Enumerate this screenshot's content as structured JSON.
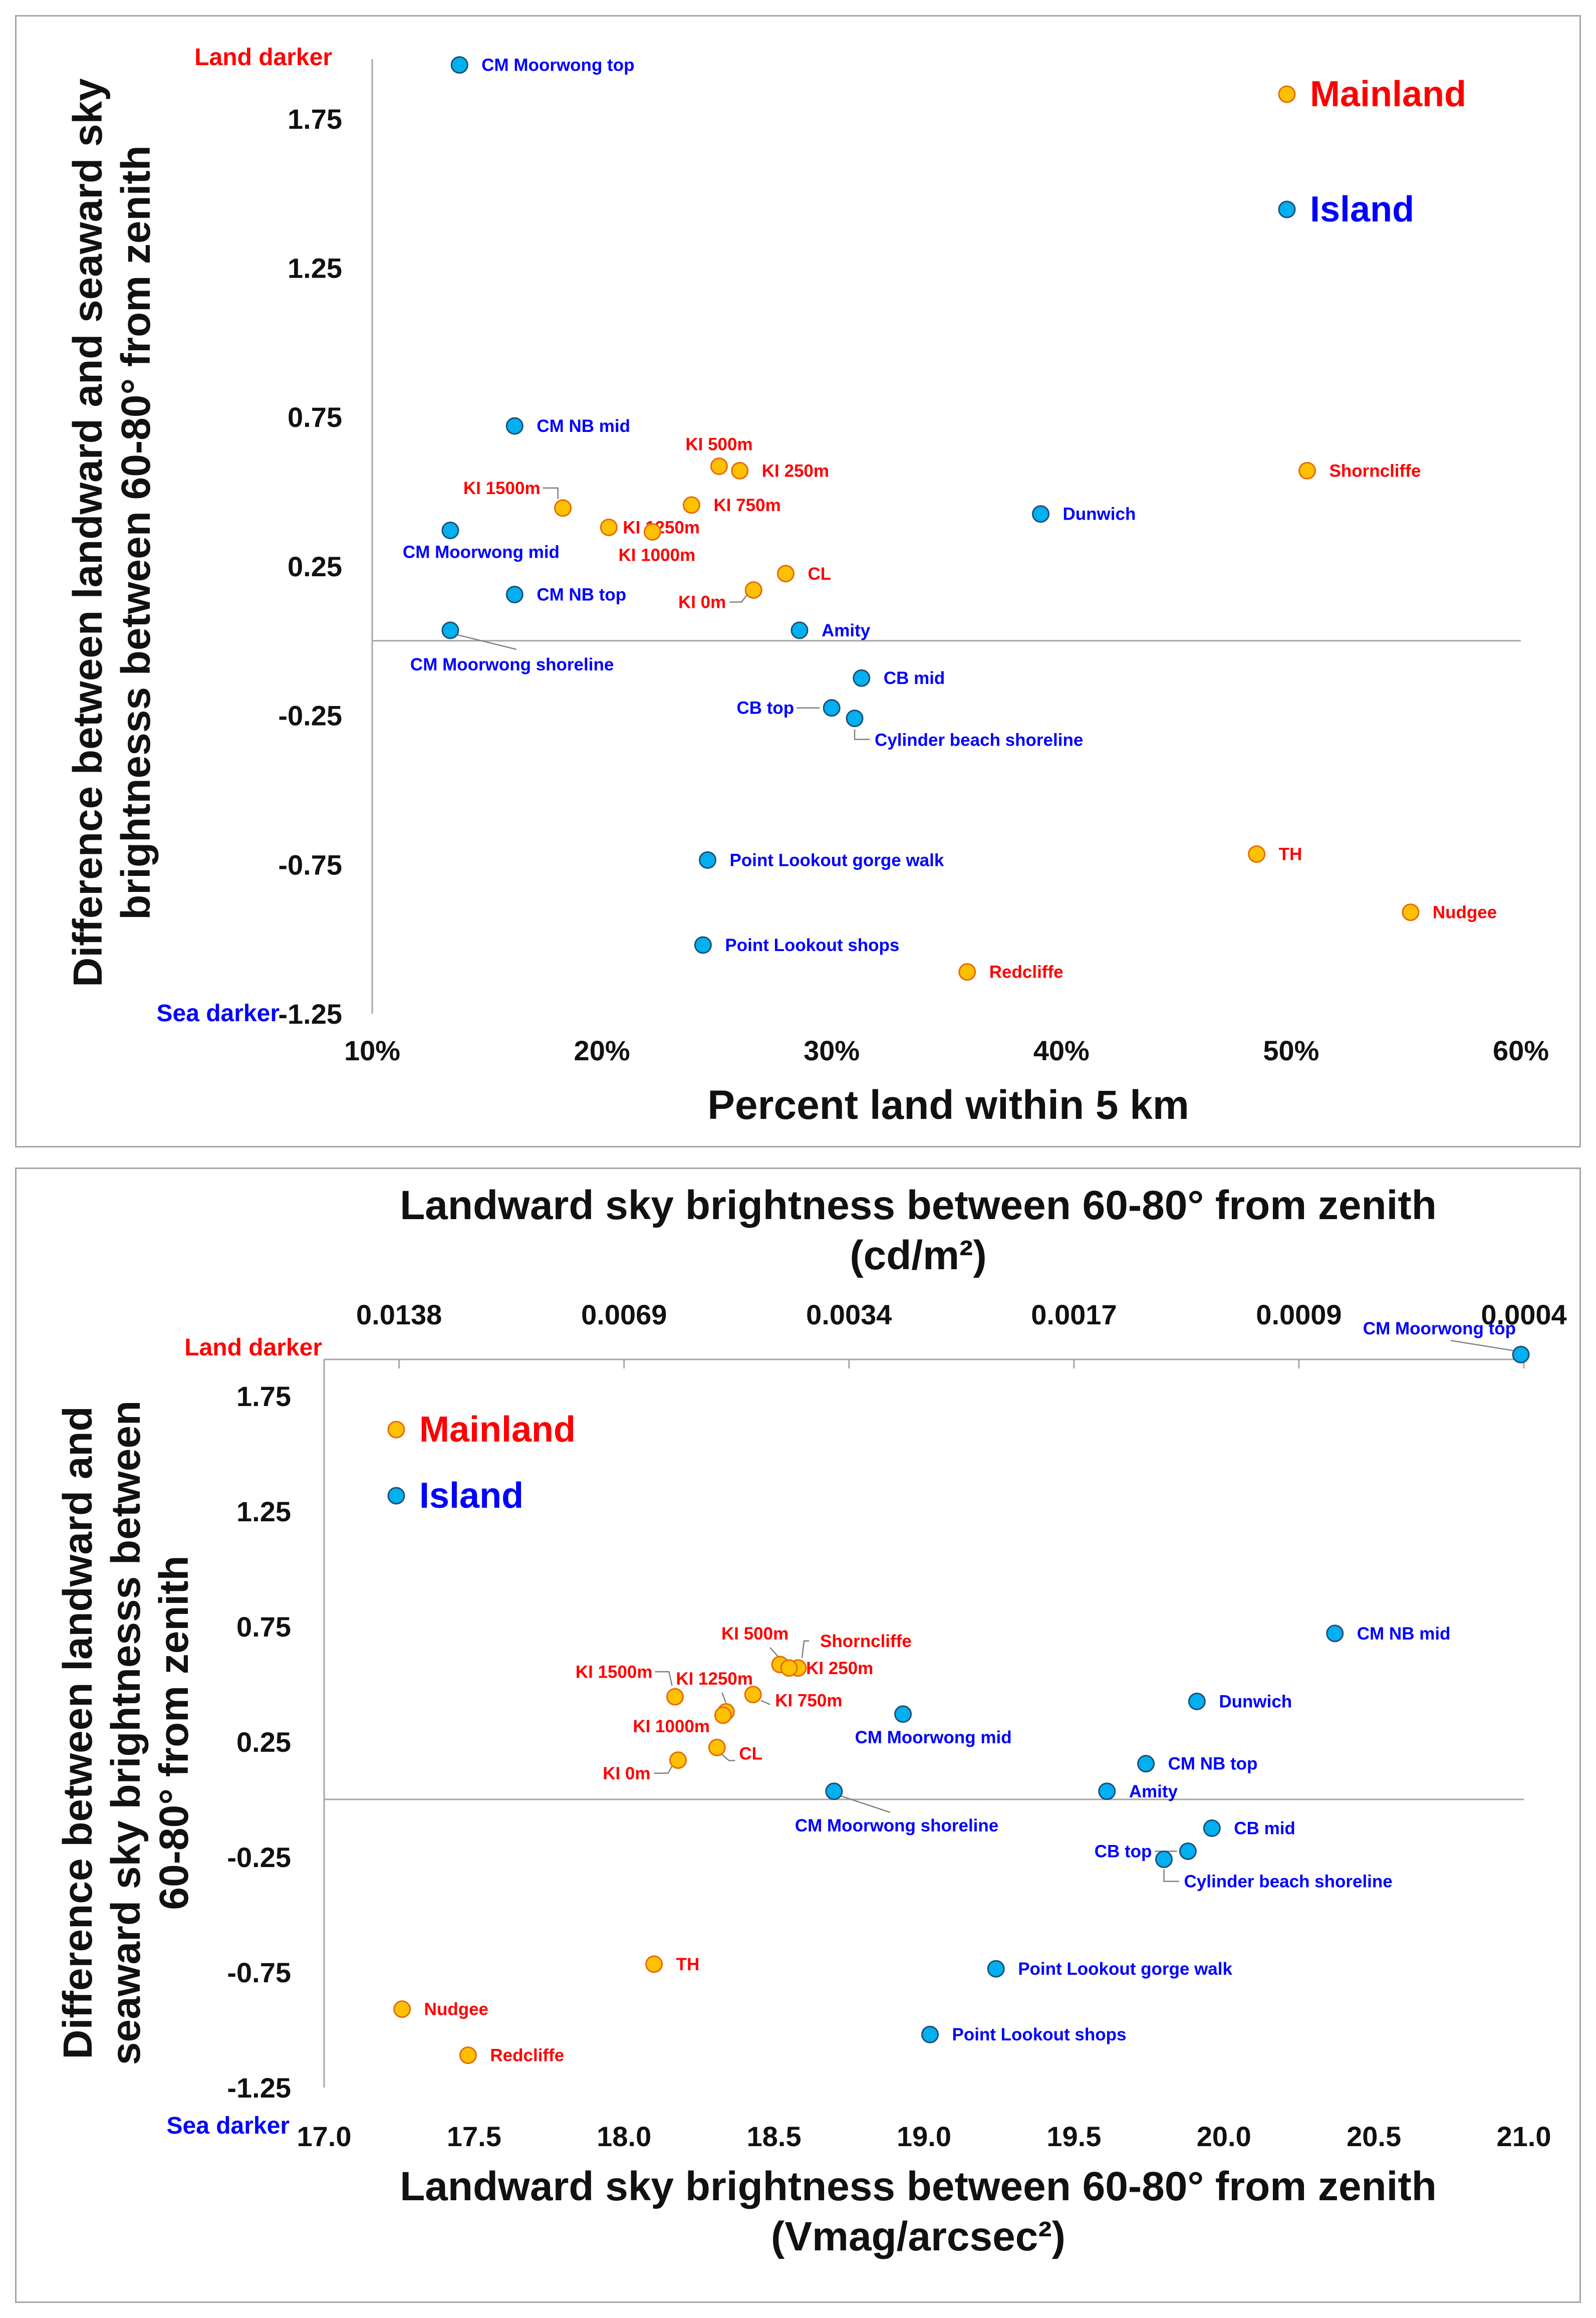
{
  "colors": {
    "mainland_fill": "#FFC000",
    "mainland_stroke": "#E46C0A",
    "island_fill": "#00B0F0",
    "island_stroke": "#1F4E79",
    "mainland_text": "#FF0000",
    "island_text": "#0000FF",
    "axis": "#a6a6a6"
  },
  "chart_data": [
    {
      "type": "scatter",
      "id": "top",
      "title": "",
      "xlabel": "Percent land within 5 km",
      "ylabel": "Difference between landward and seaward sky brightnesss between 60-80° from zenith",
      "ylabel_lines": [
        "Difference between landward and seaward sky",
        "brightnesss between 60-80° from zenith"
      ],
      "xlim": [
        0.1,
        0.6
      ],
      "ylim": [
        -1.25,
        2.0
      ],
      "x_ticks": [
        0.1,
        0.2,
        0.3,
        0.4,
        0.5,
        0.6
      ],
      "x_tick_labels": [
        "10%",
        "20%",
        "30%",
        "40%",
        "50%",
        "60%"
      ],
      "y_ticks": [
        1.75,
        1.25,
        0.75,
        0.25,
        -0.25,
        -0.75,
        -1.25
      ],
      "y_tick_labels": [
        "1.75",
        "1.25",
        "0.75",
        "0.25",
        "-0.25",
        "-0.75",
        "-1.25"
      ],
      "baseline_y": 0,
      "corner_top": "Land darker",
      "corner_bottom": "Sea darker",
      "legend": [
        {
          "name": "Mainland",
          "group": "mainland"
        },
        {
          "name": "Island",
          "group": "island"
        }
      ],
      "series": [
        {
          "name": "Island",
          "group": "island",
          "points": [
            {
              "label": "CM Moorwong top",
              "x": 0.138,
              "y": 1.93
            },
            {
              "label": "CM NB mid",
              "x": 0.162,
              "y": 0.72
            },
            {
              "label": "CM Moorwong mid",
              "x": 0.134,
              "y": 0.37
            },
            {
              "label": "CM NB top",
              "x": 0.162,
              "y": 0.155
            },
            {
              "label": "CM Moorwong shoreline",
              "x": 0.134,
              "y": 0.035
            },
            {
              "label": "Amity",
              "x": 0.286,
              "y": 0.035
            },
            {
              "label": "Dunwich",
              "x": 0.391,
              "y": 0.425
            },
            {
              "label": "CB mid",
              "x": 0.313,
              "y": -0.125
            },
            {
              "label": "CB top",
              "x": 0.3,
              "y": -0.225
            },
            {
              "label": "Cylinder beach shoreline",
              "x": 0.31,
              "y": -0.26
            },
            {
              "label": "Point Lookout gorge walk",
              "x": 0.246,
              "y": -0.735
            },
            {
              "label": "Point Lookout shops",
              "x": 0.244,
              "y": -1.02
            }
          ]
        },
        {
          "name": "Mainland",
          "group": "mainland",
          "points": [
            {
              "label": "KI 500m",
              "x": 0.251,
              "y": 0.585
            },
            {
              "label": "KI 250m",
              "x": 0.26,
              "y": 0.57
            },
            {
              "label": "KI 1500m",
              "x": 0.183,
              "y": 0.445
            },
            {
              "label": "KI 750m",
              "x": 0.239,
              "y": 0.455
            },
            {
              "label": "KI 1250m",
              "x": 0.203,
              "y": 0.38
            },
            {
              "label": "KI 1000m",
              "x": 0.222,
              "y": 0.365
            },
            {
              "label": "CL",
              "x": 0.28,
              "y": 0.225
            },
            {
              "label": "KI 0m",
              "x": 0.266,
              "y": 0.17
            },
            {
              "label": "Shorncliffe",
              "x": 0.507,
              "y": 0.57
            },
            {
              "label": "TH",
              "x": 0.485,
              "y": -0.715
            },
            {
              "label": "Nudgee",
              "x": 0.552,
              "y": -0.91
            },
            {
              "label": "Redcliffe",
              "x": 0.359,
              "y": -1.11
            }
          ]
        }
      ]
    },
    {
      "type": "scatter",
      "id": "bottom",
      "title": "",
      "xlabel": "Landward sky brightness between 60-80° from zenith (Vmag/arcsec²)",
      "xlabel_lines": [
        "Landward sky brightness between 60-80° from zenith",
        "(Vmag/arcsec²)"
      ],
      "x2label_lines": [
        "Landward sky brightness between 60-80° from zenith",
        "(cd/m²)"
      ],
      "ylabel": "Difference between landward and seaward sky brightnesss between 60-80° from zenith",
      "ylabel_lines": [
        "Difference between landward and",
        "seaward sky brightnesss between",
        "60-80° from zenith"
      ],
      "xlim": [
        17.0,
        21.0
      ],
      "ylim": [
        -1.25,
        2.0
      ],
      "x_ticks": [
        17.0,
        17.5,
        18.0,
        18.5,
        19.0,
        19.5,
        20.0,
        20.5,
        21.0
      ],
      "x_tick_labels": [
        "17.0",
        "17.5",
        "18.0",
        "18.5",
        "19.0",
        "19.5",
        "20.0",
        "20.5",
        "21.0"
      ],
      "x2_ticks": [
        17.25,
        18.0,
        18.75,
        19.5,
        20.25,
        21.0
      ],
      "x2_tick_labels": [
        "0.0138",
        "0.0069",
        "0.0034",
        "0.0017",
        "0.0009",
        "0.0004"
      ],
      "y_ticks": [
        1.75,
        1.25,
        0.75,
        0.25,
        -0.25,
        -0.75,
        -1.25
      ],
      "y_tick_labels": [
        "1.75",
        "1.25",
        "0.75",
        "0.25",
        "-0.25",
        "-0.75",
        "-1.25"
      ],
      "baseline_y": 0,
      "corner_top": "Land darker",
      "corner_bottom": "Sea darker",
      "legend": [
        {
          "name": "Mainland",
          "group": "mainland"
        },
        {
          "name": "Island",
          "group": "island"
        }
      ],
      "series": [
        {
          "name": "Island",
          "group": "island",
          "points": [
            {
              "label": "CM Moorwong top",
              "x": 20.99,
              "y": 1.93
            },
            {
              "label": "CM NB mid",
              "x": 20.37,
              "y": 0.72
            },
            {
              "label": "Dunwich",
              "x": 19.91,
              "y": 0.425
            },
            {
              "label": "CM Moorwong mid",
              "x": 18.93,
              "y": 0.37
            },
            {
              "label": "CM NB top",
              "x": 19.74,
              "y": 0.155
            },
            {
              "label": "Amity",
              "x": 19.61,
              "y": 0.035
            },
            {
              "label": "CM Moorwong shoreline",
              "x": 18.7,
              "y": 0.035
            },
            {
              "label": "CB mid",
              "x": 19.96,
              "y": -0.125
            },
            {
              "label": "CB top",
              "x": 19.88,
              "y": -0.225
            },
            {
              "label": "Cylinder beach shoreline",
              "x": 19.8,
              "y": -0.26
            },
            {
              "label": "Point Lookout gorge walk",
              "x": 19.24,
              "y": -0.735
            },
            {
              "label": "Point Lookout shops",
              "x": 19.02,
              "y": -1.02
            }
          ]
        },
        {
          "name": "Mainland",
          "group": "mainland",
          "points": [
            {
              "label": "KI 500m",
              "x": 18.52,
              "y": 0.585
            },
            {
              "label": "Shorncliffe",
              "x": 18.58,
              "y": 0.57
            },
            {
              "label": "KI 250m",
              "x": 18.55,
              "y": 0.57
            },
            {
              "label": "KI 1500m",
              "x": 18.17,
              "y": 0.445
            },
            {
              "label": "KI 750m",
              "x": 18.43,
              "y": 0.455
            },
            {
              "label": "KI 1250m",
              "x": 18.34,
              "y": 0.38
            },
            {
              "label": "KI 1000m",
              "x": 18.33,
              "y": 0.365
            },
            {
              "label": "CL",
              "x": 18.31,
              "y": 0.225
            },
            {
              "label": "KI 0m",
              "x": 18.18,
              "y": 0.17
            },
            {
              "label": "TH",
              "x": 18.1,
              "y": -0.715
            },
            {
              "label": "Nudgee",
              "x": 17.26,
              "y": -0.91
            },
            {
              "label": "Redcliffe",
              "x": 17.48,
              "y": -1.11
            }
          ]
        }
      ]
    }
  ]
}
